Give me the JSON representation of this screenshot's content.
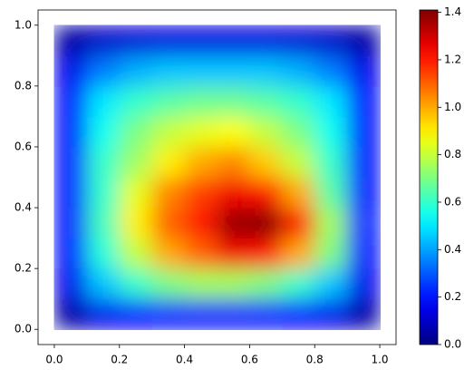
{
  "chart_data": {
    "type": "heatmap",
    "colormap": "jet",
    "x": [
      0.05,
      0.15,
      0.25,
      0.35,
      0.45,
      0.55,
      0.65,
      0.75,
      0.85,
      0.95
    ],
    "y": [
      0.05,
      0.15,
      0.25,
      0.35,
      0.45,
      0.55,
      0.65,
      0.75,
      0.85,
      0.95
    ],
    "values": [
      [
        0.05,
        0.15,
        0.18,
        0.2,
        0.2,
        0.2,
        0.2,
        0.18,
        0.15,
        0.05
      ],
      [
        0.15,
        0.45,
        0.6,
        0.7,
        0.75,
        0.75,
        0.7,
        0.6,
        0.45,
        0.15
      ],
      [
        0.2,
        0.58,
        0.8,
        1.0,
        1.1,
        1.25,
        1.2,
        1.0,
        0.7,
        0.2
      ],
      [
        0.2,
        0.62,
        0.9,
        1.1,
        1.2,
        1.38,
        1.4,
        1.2,
        0.75,
        0.22
      ],
      [
        0.2,
        0.6,
        0.85,
        1.05,
        1.15,
        1.25,
        1.2,
        1.0,
        0.65,
        0.2
      ],
      [
        0.2,
        0.6,
        0.75,
        0.9,
        1.0,
        1.05,
        0.95,
        0.8,
        0.6,
        0.2
      ],
      [
        0.2,
        0.55,
        0.7,
        0.8,
        0.85,
        0.88,
        0.8,
        0.7,
        0.55,
        0.2
      ],
      [
        0.2,
        0.5,
        0.6,
        0.65,
        0.68,
        0.68,
        0.65,
        0.6,
        0.5,
        0.2
      ],
      [
        0.15,
        0.35,
        0.42,
        0.45,
        0.45,
        0.45,
        0.45,
        0.42,
        0.35,
        0.15
      ],
      [
        0.05,
        0.1,
        0.12,
        0.13,
        0.13,
        0.13,
        0.13,
        0.12,
        0.1,
        0.05
      ]
    ],
    "xlim": [
      -0.05,
      1.05
    ],
    "ylim": [
      -0.05,
      1.05
    ],
    "xticks": [
      {
        "value": 0,
        "label": "0.0"
      },
      0.2,
      0.4,
      0.6,
      0.8,
      {
        "value": 1,
        "label": "1.0"
      }
    ],
    "yticks": [
      {
        "value": 0,
        "label": "0.0"
      },
      0.2,
      0.4,
      0.6,
      0.8,
      {
        "value": 1,
        "label": "1.0"
      }
    ],
    "clim": [
      0,
      1.41
    ],
    "cticks": [
      {
        "value": 0,
        "label": "0.0"
      },
      0.2,
      0.4,
      0.6,
      0.8,
      {
        "value": 1,
        "label": "1.0"
      },
      1.2,
      1.4
    ]
  }
}
